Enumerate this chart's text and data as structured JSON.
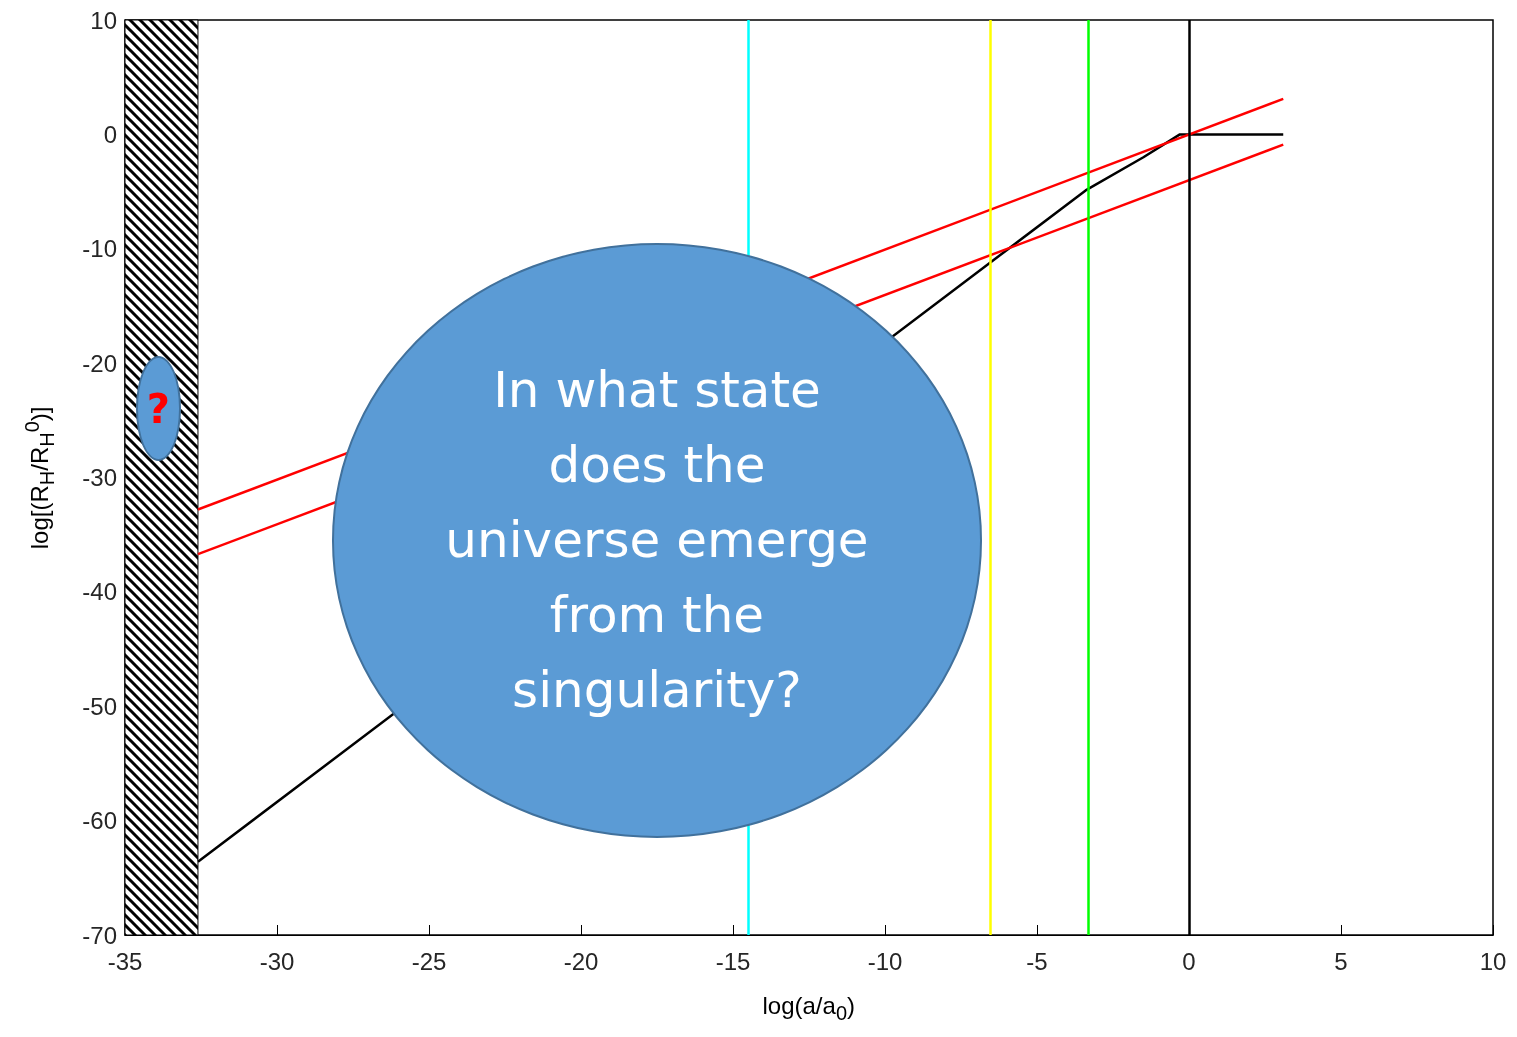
{
  "chart_data": {
    "type": "line",
    "xlabel": "log(a/a$_{0}$)",
    "ylabel": "log[(R$_{H}$/R$_{H}$$^{0}$)]",
    "xlim": [
      -35,
      10
    ],
    "xticks": [
      -35,
      -30,
      -25,
      -20,
      -15,
      -10,
      -5,
      0,
      5,
      10
    ],
    "ylim": [
      -70,
      10
    ],
    "yticks": [
      -70,
      -60,
      -50,
      -40,
      -30,
      -20,
      -10,
      0,
      10
    ],
    "grid": false,
    "marker": "none",
    "line_style": "solid",
    "series": [
      {
        "color": "#000000",
        "x": [
          -32.6,
          -3.4,
          -1.5,
          -0.3,
          3.1
        ],
        "values": [
          -63.6,
          -4.9,
          -2.0,
          0,
          0
        ]
      },
      {
        "color": "#ff0000",
        "x": [
          -32.6,
          3.1
        ],
        "values": [
          -32.8,
          3.1
        ]
      },
      {
        "color": "#ff0000",
        "x": [
          -32.6,
          3.1
        ],
        "values": [
          -36.7,
          -0.9
        ]
      }
    ],
    "ref_lines": [
      {
        "axis": "x",
        "value": -14.5,
        "color": "#00ffff"
      },
      {
        "axis": "x",
        "value": -6.55,
        "color": "#ffff00"
      },
      {
        "axis": "x",
        "value": -3.3,
        "color": "#00ff00"
      },
      {
        "axis": "x",
        "value": 0,
        "color": "#000000"
      }
    ],
    "bands": [
      {
        "axis": "x",
        "from": -35,
        "to": -32.6,
        "color": "#000000"
      }
    ],
    "annotations": [
      "In what state does the universe emerge from the singularity?",
      "?"
    ]
  }
}
